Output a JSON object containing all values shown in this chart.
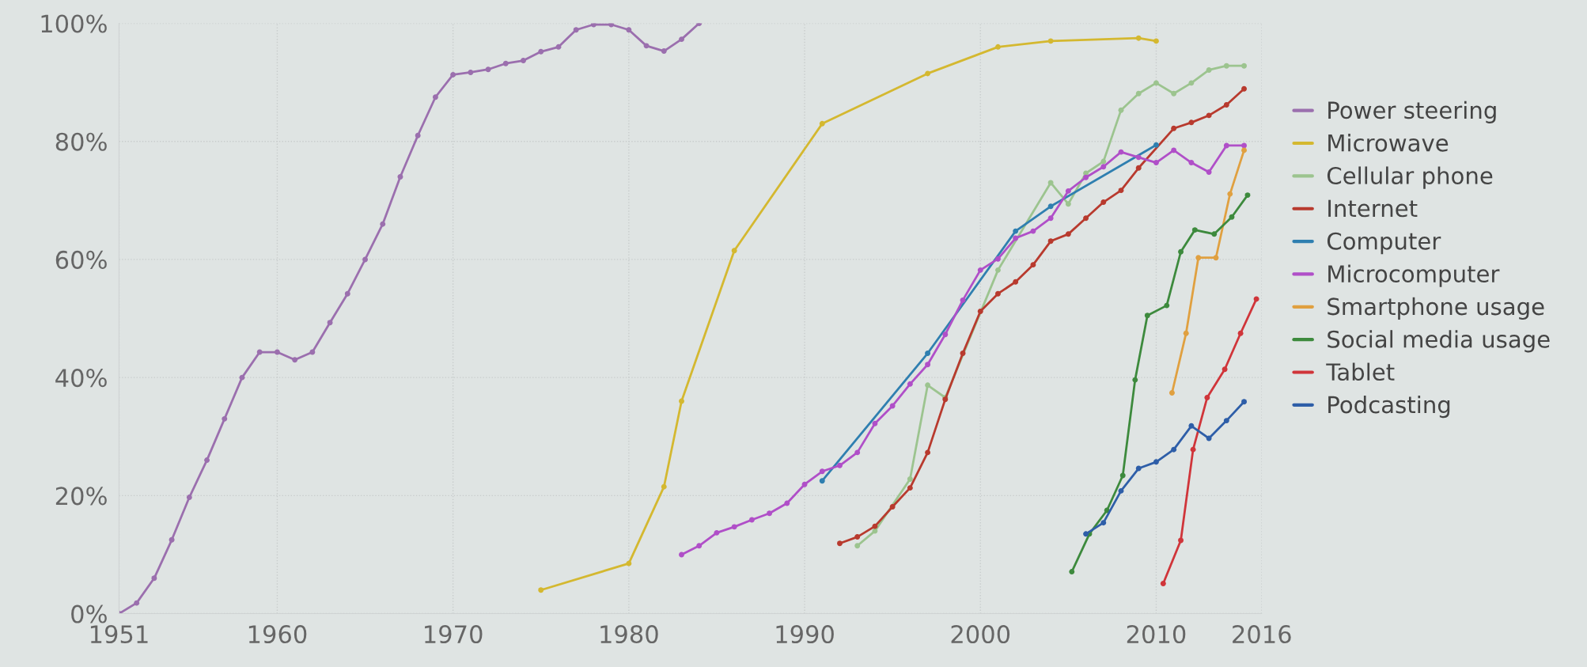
{
  "chart_data": {
    "type": "line",
    "xlim": [
      1951,
      2016
    ],
    "xticks": [
      1951,
      1960,
      1970,
      1980,
      1990,
      2000,
      2010,
      2016
    ],
    "ylim": [
      0,
      100
    ],
    "yticks": [
      {
        "value": 0,
        "label": "0%"
      },
      {
        "value": 20,
        "label": "20%"
      },
      {
        "value": 40,
        "label": "40%"
      },
      {
        "value": 60,
        "label": "60%"
      },
      {
        "value": 80,
        "label": "80%"
      },
      {
        "value": 100,
        "label": "100%"
      }
    ],
    "grid": true,
    "legend": "right",
    "marker": "circle",
    "line_style": "solid",
    "series": [
      {
        "name": "Power steering",
        "color": "#9b6fae",
        "x": [
          1951,
          1952,
          1953,
          1954,
          1955,
          1956,
          1957,
          1958,
          1959,
          1960,
          1961,
          1962,
          1963,
          1964,
          1965,
          1966,
          1967,
          1968,
          1969,
          1970,
          1971,
          1972,
          1973,
          1974,
          1975,
          1976,
          1977,
          1978,
          1979,
          1980,
          1981,
          1982,
          1983,
          1984
        ],
        "values": [
          0,
          1.8,
          6,
          12.5,
          19.7,
          26,
          33,
          40,
          44.3,
          44.3,
          43,
          44.3,
          49.3,
          54.2,
          60,
          66,
          74,
          81,
          87.5,
          91.3,
          91.7,
          92.2,
          93.2,
          93.7,
          95.2,
          96,
          98.9,
          99.8,
          99.8,
          98.9,
          96.2,
          95.3,
          97.3,
          100
        ]
      },
      {
        "name": "Microwave",
        "color": "#d4b830",
        "x": [
          1975,
          1980,
          1982,
          1983,
          1986,
          1991,
          1997,
          2001,
          2004,
          2009,
          2010
        ],
        "values": [
          4,
          8.5,
          21.5,
          36,
          61.5,
          83,
          91.5,
          96,
          97,
          97.5,
          97
        ]
      },
      {
        "name": "Cellular phone",
        "color": "#9cc48f",
        "x": [
          1993,
          1994,
          1996,
          1997,
          1998,
          2001,
          2004,
          2005,
          2006,
          2007,
          2008,
          2009,
          2010,
          2011,
          2012,
          2013,
          2014,
          2015
        ],
        "values": [
          11.5,
          14,
          22.8,
          38.7,
          36.6,
          58.2,
          73,
          69.4,
          74.6,
          76.6,
          85.3,
          88.1,
          89.9,
          88.1,
          89.9,
          92.1,
          92.8,
          92.8
        ]
      },
      {
        "name": "Internet",
        "color": "#b83a2e",
        "x": [
          1992,
          1993,
          1994,
          1995,
          1996,
          1997,
          1998,
          1999,
          2000,
          2001,
          2002,
          2003,
          2004,
          2005,
          2006,
          2007,
          2008,
          2009,
          2011,
          2012,
          2013,
          2014,
          2015
        ],
        "values": [
          11.9,
          13,
          14.8,
          18.1,
          21.3,
          27.3,
          36.3,
          44.1,
          51.2,
          54.2,
          56.2,
          59.1,
          63.1,
          64.3,
          67,
          69.7,
          71.7,
          75.5,
          82.2,
          83.2,
          84.4,
          86.2,
          88.9
        ]
      },
      {
        "name": "Computer",
        "color": "#2f7fb0",
        "x": [
          1991,
          1997,
          2002,
          2004,
          2010
        ],
        "values": [
          22.5,
          44.1,
          64.8,
          69,
          79.4
        ]
      },
      {
        "name": "Microcomputer",
        "color": "#b04fc8",
        "x": [
          1983,
          1984,
          1985,
          1986,
          1987,
          1988,
          1989,
          1990,
          1991,
          1992,
          1993,
          1994,
          1995,
          1996,
          1997,
          1998,
          1999,
          2000,
          2001,
          2002,
          2003,
          2004,
          2005,
          2006,
          2007,
          2008,
          2009,
          2010,
          2011,
          2012,
          2013,
          2014,
          2015
        ],
        "values": [
          10,
          11.5,
          13.7,
          14.7,
          15.9,
          17,
          18.7,
          21.9,
          24.1,
          25.1,
          27.3,
          32.2,
          35.2,
          38.9,
          42.2,
          47.3,
          53.1,
          58.2,
          60.1,
          63.6,
          64.8,
          67,
          71.6,
          73.9,
          75.7,
          78.2,
          77.3,
          76.4,
          78.5,
          76.4,
          74.8,
          79.3,
          79.3
        ]
      },
      {
        "name": "Smartphone usage",
        "color": "#e0a040",
        "x": [
          2010.9,
          2011.7,
          2012.4,
          2013.4,
          2014.2,
          2015
        ],
        "values": [
          37.4,
          47.5,
          60.3,
          60.3,
          71.1,
          78.5
        ]
      },
      {
        "name": "Social media usage",
        "color": "#3d8a3d",
        "x": [
          2005.2,
          2006.2,
          2007.2,
          2008.1,
          2008.8,
          2009.5,
          2010.6,
          2011.4,
          2012.2,
          2013.3,
          2014.3,
          2015.2
        ],
        "values": [
          7.1,
          13.5,
          17.5,
          23.4,
          39.6,
          50.5,
          52.2,
          61.3,
          65,
          64.3,
          67.2,
          70.9
        ]
      },
      {
        "name": "Tablet",
        "color": "#d0353a",
        "x": [
          2010.4,
          2011.4,
          2012.1,
          2012.9,
          2013.9,
          2014.8,
          2015.7
        ],
        "values": [
          5.1,
          12.4,
          27.8,
          36.6,
          41.4,
          47.5,
          53.3
        ]
      },
      {
        "name": "Podcasting",
        "color": "#2e5ea8",
        "x": [
          2006,
          2007,
          2008,
          2009,
          2010,
          2011,
          2012,
          2013,
          2014,
          2015
        ],
        "values": [
          13.5,
          15.4,
          20.8,
          24.6,
          25.7,
          27.8,
          31.8,
          29.7,
          32.7,
          35.9
        ]
      }
    ]
  }
}
